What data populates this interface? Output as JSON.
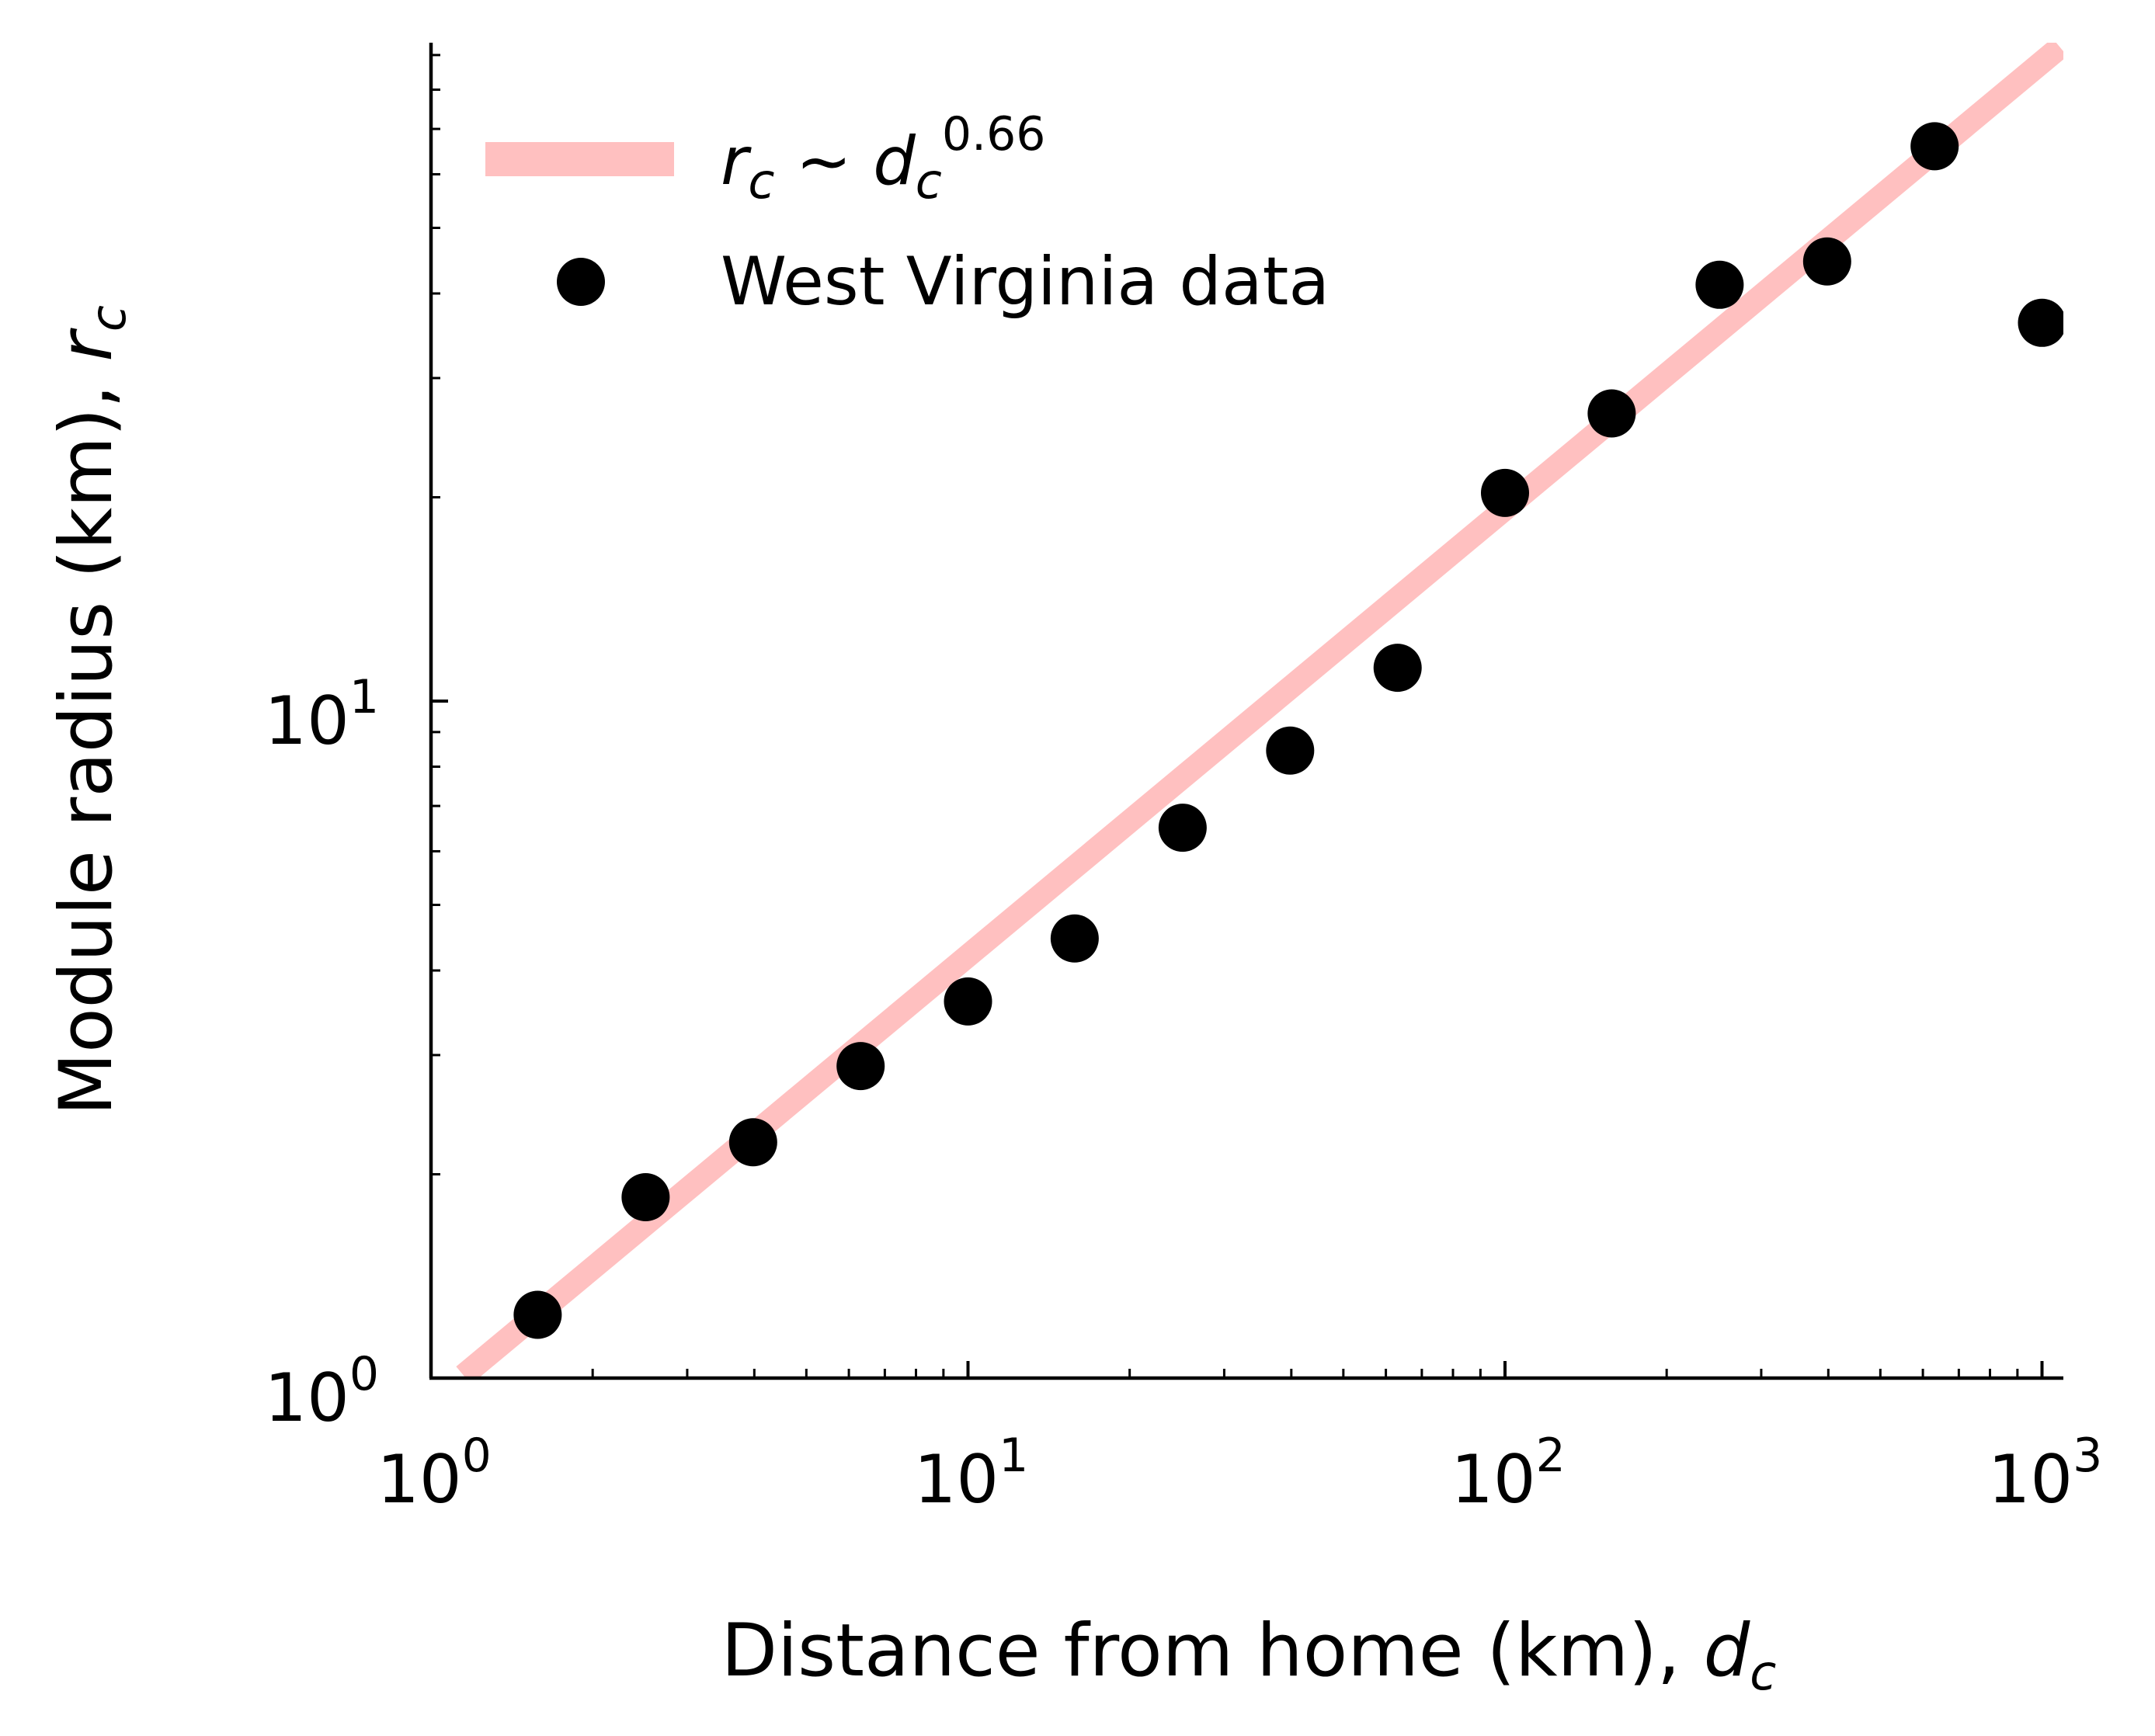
{
  "chart_data": {
    "type": "scatter",
    "x_scale": "log",
    "y_scale": "log",
    "xlim": [
      1,
      1100
    ],
    "ylim": [
      1,
      100
    ],
    "x_ticks": [
      {
        "base": "10",
        "exp": "0",
        "value": 1
      },
      {
        "base": "10",
        "exp": "1",
        "value": 10
      },
      {
        "base": "10",
        "exp": "2",
        "value": 100
      },
      {
        "base": "10",
        "exp": "3",
        "value": 1000
      }
    ],
    "y_ticks": [
      {
        "base": "10",
        "exp": "0",
        "value": 1
      },
      {
        "base": "10",
        "exp": "1",
        "value": 10
      }
    ],
    "xlabel": {
      "text": "Distance from home (km), ",
      "var": "d",
      "sub": "c"
    },
    "ylabel": {
      "text": "Module radius (km), ",
      "var": "r",
      "sub": "c"
    },
    "legend": {
      "placement": "top-left",
      "fit_label": {
        "lhs": "r",
        "lhs_sub": "c",
        "op": " ~ ",
        "rhs": "d",
        "rhs_sub": "c",
        "exp": "0.66"
      },
      "data_label": "West Virginia data"
    },
    "fit": {
      "exponent": 0.66,
      "prefactor": 0.92,
      "x_range": [
        1.15,
        1080
      ],
      "color": "#ffc0c0"
    },
    "series": [
      {
        "name": "West Virginia data",
        "color": "#000000",
        "points": [
          {
            "x": 1.58,
            "y": 1.24
          },
          {
            "x": 2.51,
            "y": 1.85
          },
          {
            "x": 3.98,
            "y": 2.23
          },
          {
            "x": 6.31,
            "y": 2.89
          },
          {
            "x": 10.0,
            "y": 3.6
          },
          {
            "x": 15.8,
            "y": 4.46
          },
          {
            "x": 25.1,
            "y": 6.5
          },
          {
            "x": 39.8,
            "y": 8.45
          },
          {
            "x": 63.1,
            "y": 11.2
          },
          {
            "x": 100,
            "y": 20.3
          },
          {
            "x": 158,
            "y": 26.6
          },
          {
            "x": 251,
            "y": 41.2
          },
          {
            "x": 398,
            "y": 44.6
          },
          {
            "x": 631,
            "y": 66.0
          },
          {
            "x": 1000,
            "y": 36.2
          }
        ]
      }
    ]
  }
}
